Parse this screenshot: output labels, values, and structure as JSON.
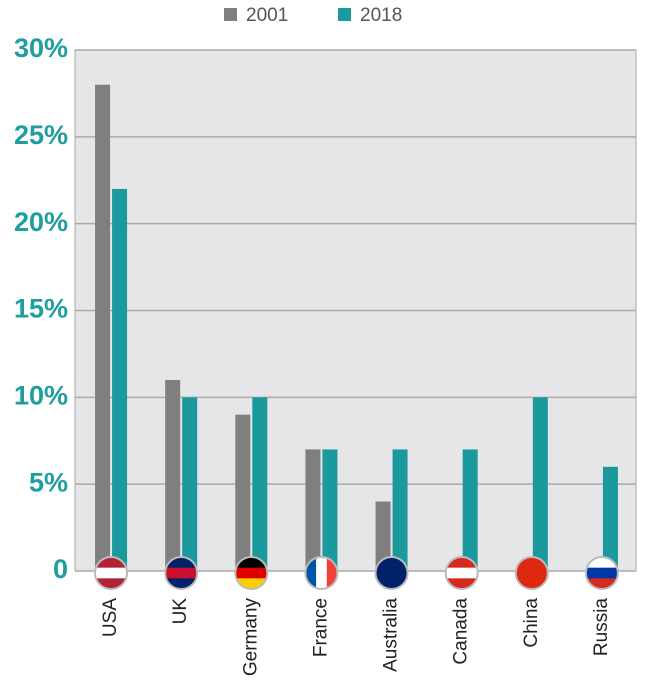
{
  "chart_data": {
    "type": "bar",
    "categories": [
      "USA",
      "UK",
      "Germany",
      "France",
      "Australia",
      "Canada",
      "China",
      "Russia"
    ],
    "series": [
      {
        "name": "2001",
        "color": "#7f7f7f",
        "values": [
          28,
          11,
          9,
          7,
          4,
          0,
          0,
          0
        ]
      },
      {
        "name": "2018",
        "color": "#1a9a9c",
        "values": [
          22,
          10,
          10,
          7,
          7,
          7,
          10,
          6
        ]
      }
    ],
    "ylim": [
      0,
      30
    ],
    "yticks": [
      0,
      {
        "value": 5,
        "label": "5%"
      },
      {
        "value": 10,
        "label": "10%"
      },
      {
        "value": 15,
        "label": "15%"
      },
      {
        "value": 20,
        "label": "20%"
      },
      {
        "value": 25,
        "label": "25%"
      },
      {
        "value": 30,
        "label": "30%"
      }
    ],
    "grid": true
  }
}
